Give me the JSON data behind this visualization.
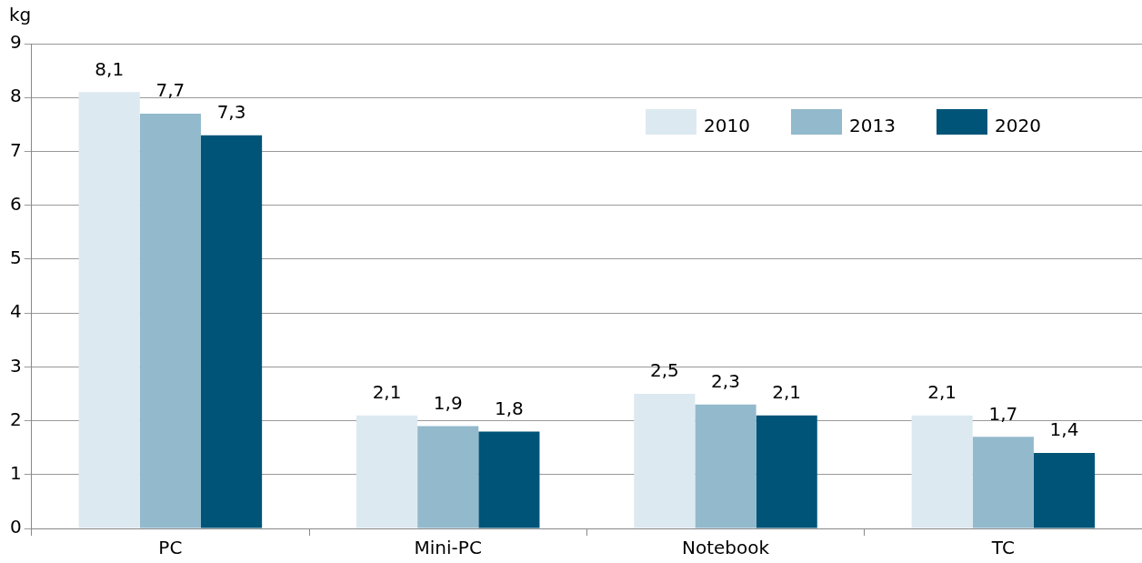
{
  "chart_data": {
    "type": "bar",
    "ylabel": "kg",
    "categories": [
      "PC",
      "Mini-PC",
      "Notebook",
      "TC"
    ],
    "series": [
      {
        "name": "2010",
        "color": "#dde9f0",
        "values": [
          8.1,
          2.1,
          2.5,
          2.1
        ],
        "value_labels": [
          "8,1",
          "2,1",
          "2,5",
          "2,1"
        ]
      },
      {
        "name": "2013",
        "color": "#93b9cc",
        "values": [
          7.7,
          1.9,
          2.3,
          1.7
        ],
        "value_labels": [
          "7,7",
          "1,9",
          "2,3",
          "1,7"
        ]
      },
      {
        "name": "2020",
        "color": "#005478",
        "values": [
          7.3,
          1.8,
          2.1,
          1.4
        ],
        "value_labels": [
          "7,3",
          "1,8",
          "2,1",
          "1,4"
        ]
      }
    ],
    "ylim": [
      0,
      9
    ],
    "yticks": [
      0,
      1,
      2,
      3,
      4,
      5,
      6,
      7,
      8,
      9
    ],
    "grid": "y",
    "legend": "top right"
  }
}
